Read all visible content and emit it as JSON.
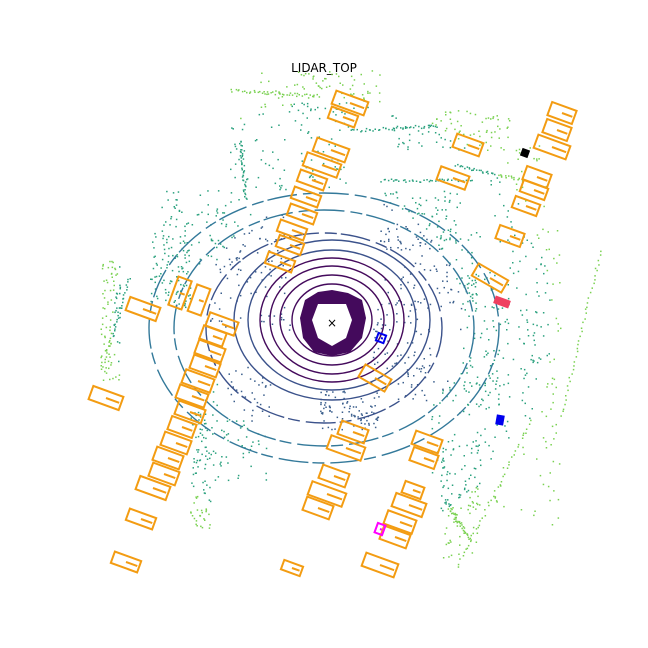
{
  "figure": {
    "title": "LIDAR_TOP"
  },
  "colors": {
    "background": "#ffffff",
    "box_orange": "#f39c12",
    "box_blue": "#0000ee",
    "box_red": "#ef4060",
    "box_magenta": "#ff00ff",
    "box_black": "#000000",
    "ego_marker": "#000000",
    "point_near": "#440a5c",
    "point_mid": "#3a5e8c",
    "point_far": "#2aa17e",
    "point_farthest": "#7ad151"
  },
  "legend": {
    "ego_marker": "×"
  }
}
